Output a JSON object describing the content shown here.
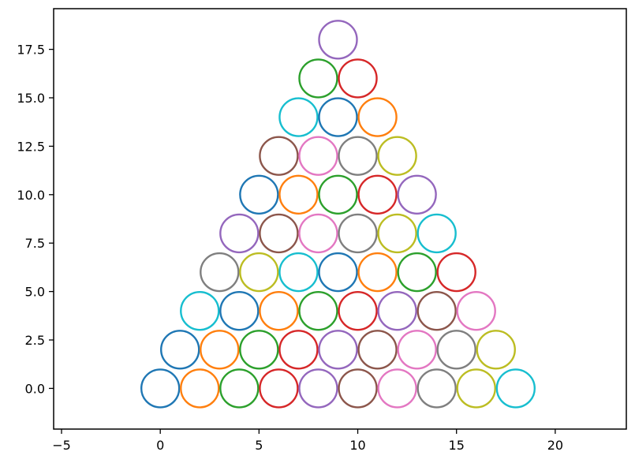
{
  "chart_data": {
    "type": "scatter",
    "title": "",
    "xlabel": "",
    "ylabel": "",
    "xlim": [
      -5.4,
      23.6
    ],
    "ylim": [
      -2.1,
      19.6
    ],
    "grid": false,
    "legend": "none",
    "marker": "hollow-circle",
    "x_ticks": [
      -5,
      0,
      5,
      10,
      15,
      20
    ],
    "x_tick_labels": [
      "−5",
      "0",
      "5",
      "10",
      "15",
      "20"
    ],
    "y_ticks": [
      0,
      2.5,
      5,
      7.5,
      10,
      12.5,
      15,
      17.5
    ],
    "y_tick_labels": [
      "0.0",
      "2.5",
      "5.0",
      "7.5",
      "10.0",
      "12.5",
      "15.0",
      "17.5"
    ],
    "palette": [
      "#1f77b4",
      "#ff7f0e",
      "#2ca02c",
      "#d62728",
      "#9467bd",
      "#8c564b",
      "#e377c2",
      "#7f7f7f",
      "#bcbd22",
      "#17becf"
    ],
    "points": [
      {
        "x": 0,
        "y": 0
      },
      {
        "x": 2,
        "y": 0
      },
      {
        "x": 4,
        "y": 0
      },
      {
        "x": 6,
        "y": 0
      },
      {
        "x": 8,
        "y": 0
      },
      {
        "x": 10,
        "y": 0
      },
      {
        "x": 12,
        "y": 0
      },
      {
        "x": 14,
        "y": 0
      },
      {
        "x": 16,
        "y": 0
      },
      {
        "x": 18,
        "y": 0
      },
      {
        "x": 1,
        "y": 2
      },
      {
        "x": 3,
        "y": 2
      },
      {
        "x": 5,
        "y": 2
      },
      {
        "x": 7,
        "y": 2
      },
      {
        "x": 9,
        "y": 2
      },
      {
        "x": 11,
        "y": 2
      },
      {
        "x": 13,
        "y": 2
      },
      {
        "x": 15,
        "y": 2
      },
      {
        "x": 17,
        "y": 2
      },
      {
        "x": 2,
        "y": 4
      },
      {
        "x": 4,
        "y": 4
      },
      {
        "x": 6,
        "y": 4
      },
      {
        "x": 8,
        "y": 4
      },
      {
        "x": 10,
        "y": 4
      },
      {
        "x": 12,
        "y": 4
      },
      {
        "x": 14,
        "y": 4
      },
      {
        "x": 16,
        "y": 4
      },
      {
        "x": 3,
        "y": 6
      },
      {
        "x": 5,
        "y": 6
      },
      {
        "x": 7,
        "y": 6
      },
      {
        "x": 9,
        "y": 6
      },
      {
        "x": 11,
        "y": 6
      },
      {
        "x": 13,
        "y": 6
      },
      {
        "x": 15,
        "y": 6
      },
      {
        "x": 4,
        "y": 8
      },
      {
        "x": 6,
        "y": 8
      },
      {
        "x": 8,
        "y": 8
      },
      {
        "x": 10,
        "y": 8
      },
      {
        "x": 12,
        "y": 8
      },
      {
        "x": 14,
        "y": 8
      },
      {
        "x": 5,
        "y": 10
      },
      {
        "x": 7,
        "y": 10
      },
      {
        "x": 9,
        "y": 10
      },
      {
        "x": 11,
        "y": 10
      },
      {
        "x": 13,
        "y": 10
      },
      {
        "x": 6,
        "y": 12
      },
      {
        "x": 8,
        "y": 12
      },
      {
        "x": 10,
        "y": 12
      },
      {
        "x": 12,
        "y": 12
      },
      {
        "x": 7,
        "y": 14
      },
      {
        "x": 9,
        "y": 14
      },
      {
        "x": 11,
        "y": 14
      },
      {
        "x": 8,
        "y": 16
      },
      {
        "x": 10,
        "y": 16
      },
      {
        "x": 9,
        "y": 18
      }
    ]
  }
}
